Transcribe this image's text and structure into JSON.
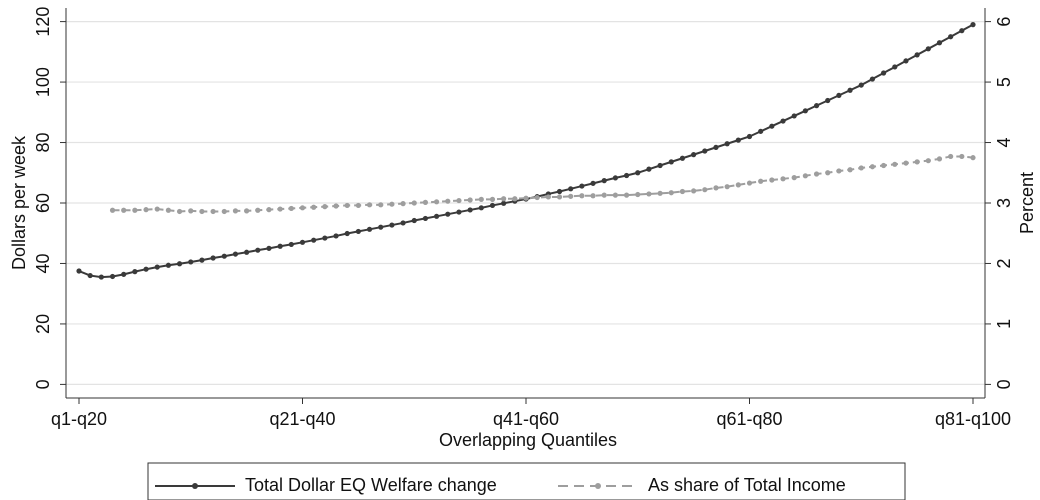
{
  "chart_data": {
    "type": "line",
    "xlabel": "Overlapping Quantiles",
    "ylabel": "Dollars per week",
    "y2label": "Percent",
    "categories": [
      "q1-q20",
      null,
      null,
      null,
      null,
      null,
      null,
      null,
      null,
      null,
      null,
      null,
      null,
      null,
      null,
      null,
      null,
      null,
      null,
      null,
      "q21-q40",
      null,
      null,
      null,
      null,
      null,
      null,
      null,
      null,
      null,
      null,
      null,
      null,
      null,
      null,
      null,
      null,
      null,
      null,
      null,
      "q41-q60",
      null,
      null,
      null,
      null,
      null,
      null,
      null,
      null,
      null,
      null,
      null,
      null,
      null,
      null,
      null,
      null,
      null,
      null,
      null,
      "q61-q80",
      null,
      null,
      null,
      null,
      null,
      null,
      null,
      null,
      null,
      null,
      null,
      null,
      null,
      null,
      null,
      null,
      null,
      null,
      null,
      "q81-q100"
    ],
    "series": [
      {
        "name": "Total Dollar EQ Welfare change",
        "color": "#3a3a3a",
        "line_style": "solid",
        "values": [
          37.5,
          36,
          35.5,
          35.7,
          36.4,
          37.3,
          38.1,
          38.8,
          39.4,
          39.9,
          40.5,
          41.1,
          41.8,
          42.4,
          43.1,
          43.7,
          44.4,
          45,
          45.7,
          46.3,
          47,
          47.7,
          48.4,
          49.1,
          49.9,
          50.6,
          51.3,
          52,
          52.7,
          53.4,
          54.2,
          54.9,
          55.6,
          56.3,
          57,
          57.7,
          58.4,
          59.2,
          59.9,
          60.6,
          61.3,
          62.1,
          63,
          63.8,
          64.7,
          65.6,
          66.5,
          67.4,
          68.3,
          69.1,
          70,
          71.2,
          72.4,
          73.6,
          74.8,
          76,
          77.2,
          78.4,
          79.6,
          80.8,
          82,
          83.7,
          85.4,
          87.1,
          88.8,
          90.5,
          92.2,
          93.9,
          95.6,
          97.3,
          99,
          101,
          103,
          105,
          107,
          109,
          111,
          113,
          115,
          117,
          119
        ]
      },
      {
        "name": "As share of Total Income",
        "color": "#9e9e9e",
        "line_style": "dashed",
        "axis": "y2",
        "values": [
          null,
          null,
          null,
          2.88,
          2.88,
          2.88,
          2.89,
          2.9,
          2.88,
          2.86,
          2.87,
          2.86,
          2.86,
          2.86,
          2.87,
          2.87,
          2.88,
          2.89,
          2.9,
          2.91,
          2.92,
          2.93,
          2.94,
          2.95,
          2.96,
          2.96,
          2.97,
          2.97,
          2.98,
          2.99,
          3.0,
          3.01,
          3.02,
          3.03,
          3.04,
          3.05,
          3.06,
          3.06,
          3.07,
          3.07,
          3.08,
          3.09,
          3.1,
          3.1,
          3.11,
          3.12,
          3.12,
          3.13,
          3.13,
          3.13,
          3.14,
          3.15,
          3.16,
          3.17,
          3.19,
          3.2,
          3.22,
          3.25,
          3.27,
          3.3,
          3.33,
          3.36,
          3.38,
          3.4,
          3.42,
          3.45,
          3.48,
          3.5,
          3.53,
          3.55,
          3.58,
          3.6,
          3.62,
          3.64,
          3.66,
          3.68,
          3.7,
          3.73,
          3.77,
          3.77,
          3.75
        ]
      }
    ],
    "ylim": [
      -4.5,
      124.5
    ],
    "yticks": [
      0,
      20,
      40,
      60,
      80,
      100,
      120
    ],
    "y2lim": [
      -0.225,
      6.225
    ],
    "y2ticks": [
      0,
      1,
      2,
      3,
      4,
      5,
      6
    ],
    "grid": true,
    "legend_position": "bottom"
  }
}
